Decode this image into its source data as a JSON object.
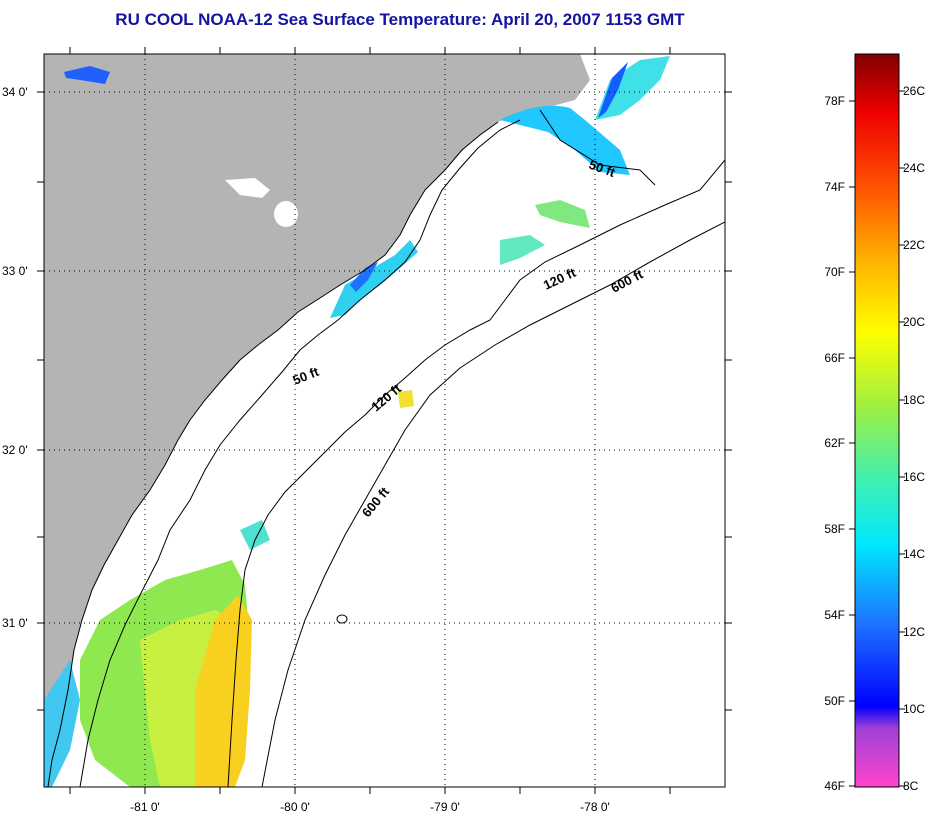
{
  "title": "RU COOL  NOAA-12  Sea Surface Temperature:  April 20, 2007 1153 GMT",
  "map": {
    "lon_ticks": [
      "-81 0'",
      "-80 0'",
      "-79 0'",
      "-78 0'"
    ],
    "lat_ticks": [
      "34 0'",
      "33 0'",
      "32 0'",
      "31 0'"
    ],
    "isobaths": [
      "50 ft",
      "50 ft",
      "120 ft",
      "120 ft",
      "600 ft",
      "600 ft"
    ],
    "land_color": "#b4b4b4",
    "water_color": "#ffffff"
  },
  "colorbar": {
    "fahrenheit_labels": [
      "78F",
      "74F",
      "70F",
      "66F",
      "62F",
      "58F",
      "54F",
      "50F",
      "46F"
    ],
    "celsius_labels": [
      "26C",
      "24C",
      "22C",
      "20C",
      "18C",
      "16C",
      "14C",
      "12C",
      "10C",
      "8C"
    ],
    "range_c": [
      8,
      27
    ]
  }
}
